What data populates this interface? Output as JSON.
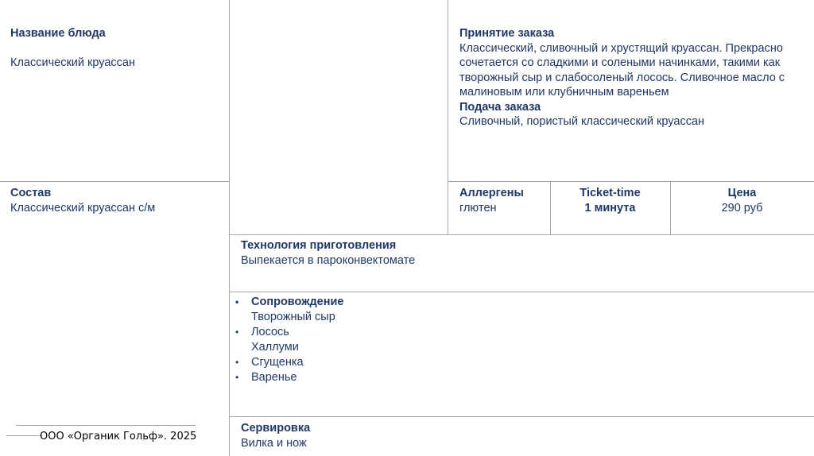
{
  "dish": {
    "label": "Название блюда",
    "value": "Классический круассан"
  },
  "composition": {
    "label": "Состав",
    "value": "Классический круассан с/м"
  },
  "order": {
    "label": "Принятие заказа",
    "value": "Классический, сливочный и хрустящий круассан. Прекрасно сочетается со сладкими и солеными начинками, такими как творожный сыр и слабосоленый лосось. Сливочное масло с малиновым или клубничным вареньем",
    "serve_label": "Подача заказа",
    "serve_value": "Сливочный, пористый классический круассан"
  },
  "allergens": {
    "label": "Аллергены",
    "value": "глютен"
  },
  "ticket": {
    "label": "Ticket-time",
    "value": "1 минута"
  },
  "price": {
    "label": "Цена",
    "value": "290 руб"
  },
  "tech": {
    "label": "Технология приготовления",
    "value": "Выпекается в пароконвектомате"
  },
  "accomp": {
    "items": [
      {
        "text": "Сопровождение",
        "bullet": true,
        "bold": true
      },
      {
        "text": "Творожный сыр",
        "bullet": false
      },
      {
        "text": "Лосось",
        "bullet": true
      },
      {
        "text": "Халлуми",
        "bullet": false
      },
      {
        "text": "Сгущенка",
        "bullet": true
      },
      {
        "text": "Варенье",
        "bullet": true
      }
    ]
  },
  "serving": {
    "label": "Сервировка",
    "value": "Вилка и нож"
  },
  "footer": "ООО «Органик Гольф». 2025"
}
